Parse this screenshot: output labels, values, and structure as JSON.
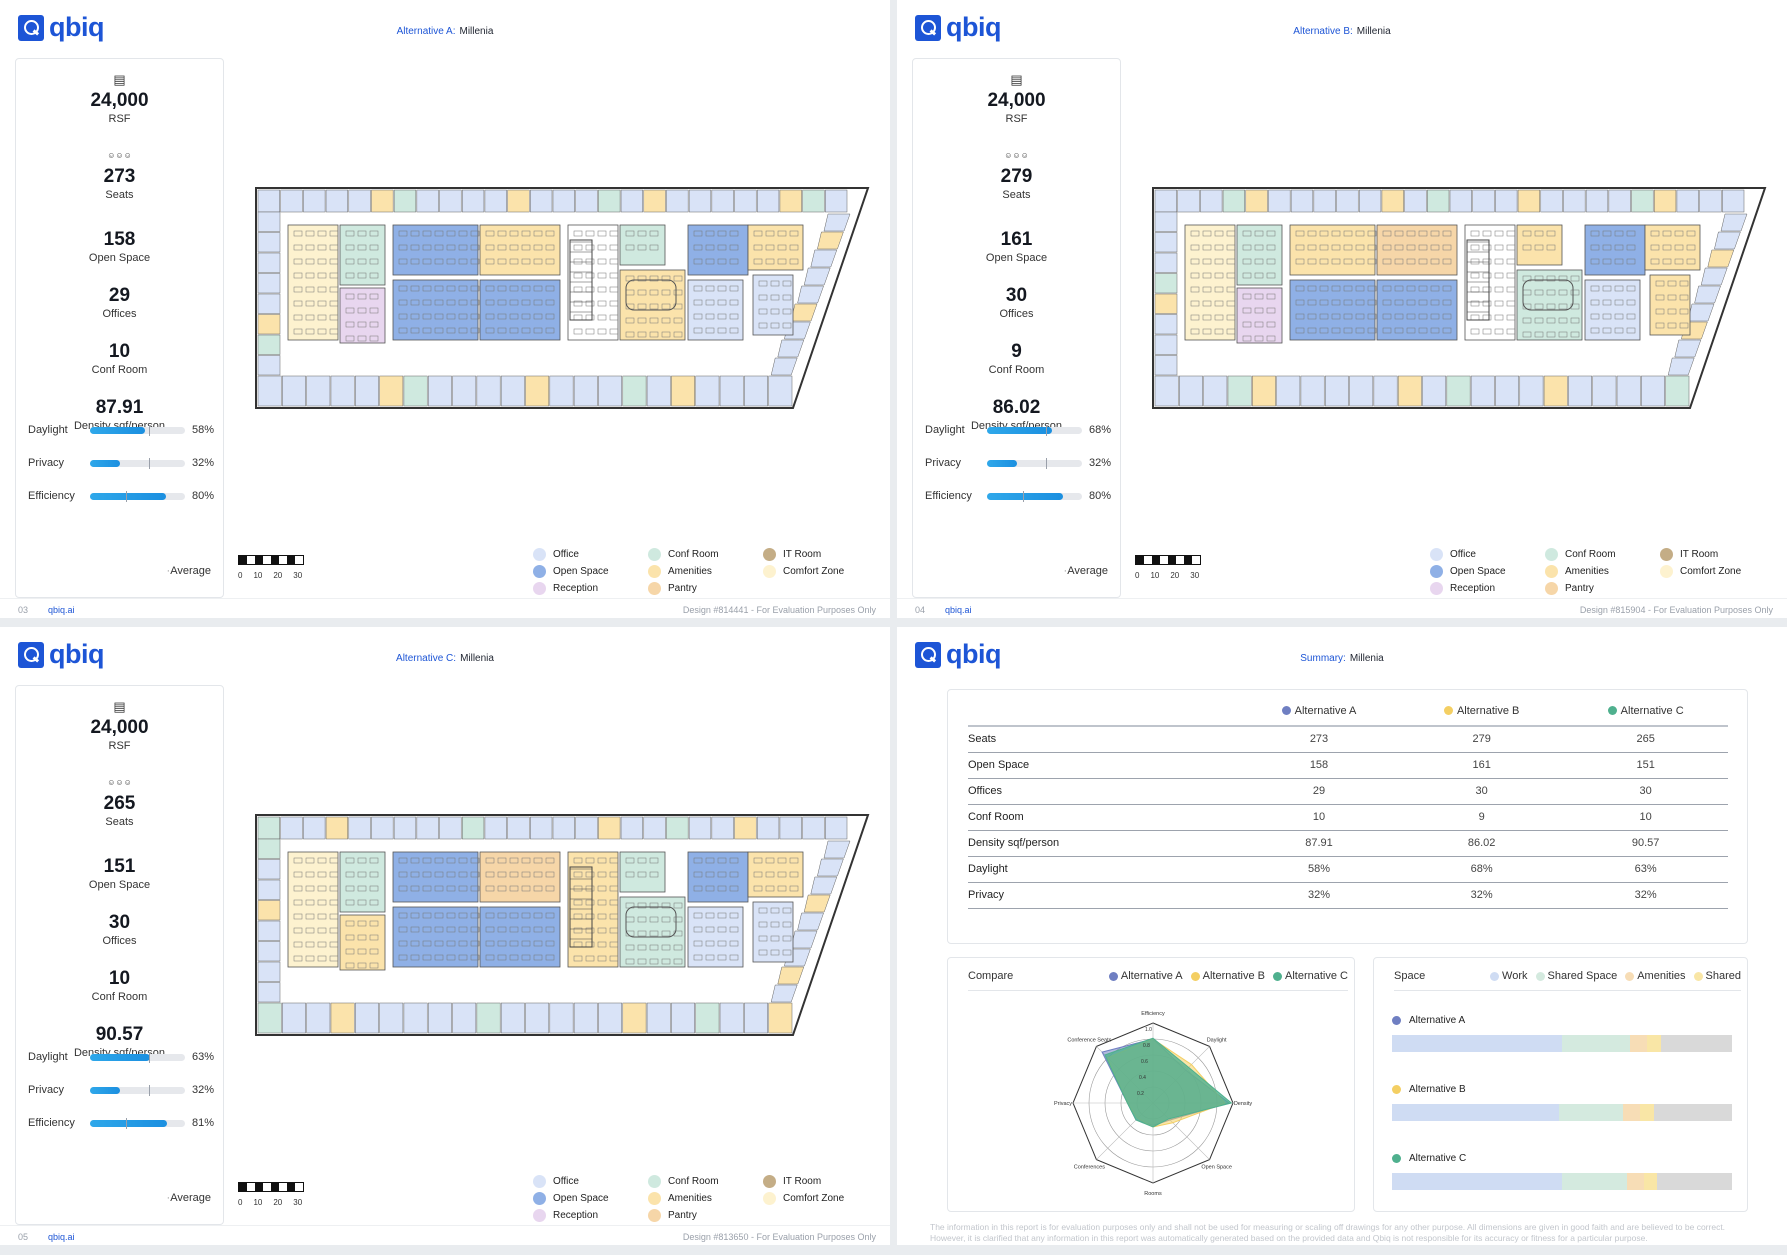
{
  "brand": {
    "logo_text": "qbiq",
    "url": "qbiq.ai"
  },
  "colors": {
    "office": "#d9e3f7",
    "open_space": "#8fb0e6",
    "reception": "#e8d6ef",
    "conf_room": "#cfe9df",
    "amenities": "#fbe3ab",
    "pantry": "#f6d6a8",
    "it_room": "#c4ad86",
    "comfort_zone": "#fdf2cf",
    "alt_a": "#6f7fc2",
    "alt_b": "#f4cf63",
    "alt_c": "#4fb08e"
  },
  "legend": [
    "Office",
    "Conf Room",
    "IT Room",
    "Open Space",
    "Amenities",
    "Comfort Zone",
    "Reception",
    "Pantry"
  ],
  "scale": {
    "ticks": [
      "0",
      "10",
      "20",
      "30"
    ]
  },
  "metric_labels": {
    "daylight": "Daylight",
    "privacy": "Privacy",
    "efficiency": "Efficiency",
    "average": "Average"
  },
  "pages": [
    {
      "title_label": "Alternative A:",
      "title_value": "Millenia",
      "rsf": "24,000",
      "rsf_label": "RSF",
      "seats": "273",
      "seats_label": "Seats",
      "open_space": "158",
      "open_space_label": "Open Space",
      "offices": "29",
      "offices_label": "Offices",
      "conf_room": "10",
      "conf_room_label": "Conf Room",
      "density": "87.91",
      "density_label": "Density sqf/person",
      "daylight": "58%",
      "privacy": "32%",
      "efficiency": "80%",
      "daylight_frac": 0.58,
      "privacy_frac": 0.32,
      "efficiency_frac": 0.8,
      "page_number": "03",
      "design": "Design #814441 - For Evaluation Purposes Only"
    },
    {
      "title_label": "Alternative B:",
      "title_value": "Millenia",
      "rsf": "24,000",
      "rsf_label": "RSF",
      "seats": "279",
      "seats_label": "Seats",
      "open_space": "161",
      "open_space_label": "Open Space",
      "offices": "30",
      "offices_label": "Offices",
      "conf_room": "9",
      "conf_room_label": "Conf Room",
      "density": "86.02",
      "density_label": "Density sqf/person",
      "daylight": "68%",
      "privacy": "32%",
      "efficiency": "80%",
      "daylight_frac": 0.68,
      "privacy_frac": 0.32,
      "efficiency_frac": 0.8,
      "page_number": "04",
      "design": "Design #815904 - For Evaluation Purposes Only"
    },
    {
      "title_label": "Alternative C:",
      "title_value": "Millenia",
      "rsf": "24,000",
      "rsf_label": "RSF",
      "seats": "265",
      "seats_label": "Seats",
      "open_space": "151",
      "open_space_label": "Open Space",
      "offices": "30",
      "offices_label": "Offices",
      "conf_room": "10",
      "conf_room_label": "Conf Room",
      "density": "90.57",
      "density_label": "Density sqf/person",
      "daylight": "63%",
      "privacy": "32%",
      "efficiency": "81%",
      "daylight_frac": 0.63,
      "privacy_frac": 0.32,
      "efficiency_frac": 0.81,
      "page_number": "05",
      "design": "Design #813650 - For Evaluation Purposes Only"
    }
  ],
  "summary": {
    "title_label": "Summary:",
    "title_value": "Millenia",
    "columns": [
      "Alternative A",
      "Alternative B",
      "Alternative C"
    ],
    "rows": [
      {
        "label": "Seats",
        "values": [
          "273",
          "279",
          "265"
        ]
      },
      {
        "label": "Open Space",
        "values": [
          "158",
          "161",
          "151"
        ]
      },
      {
        "label": "Offices",
        "values": [
          "29",
          "30",
          "30"
        ]
      },
      {
        "label": "Conf Room",
        "values": [
          "10",
          "9",
          "10"
        ]
      },
      {
        "label": "Density sqf/person",
        "values": [
          "87.91",
          "86.02",
          "90.57"
        ]
      },
      {
        "label": "Daylight",
        "values": [
          "58%",
          "68%",
          "63%"
        ]
      },
      {
        "label": "Privacy",
        "values": [
          "32%",
          "32%",
          "32%"
        ]
      }
    ],
    "compare_title": "Compare",
    "space_title": "Space",
    "space_legend": [
      "Work",
      "Shared Space",
      "Amenities",
      "Shared"
    ],
    "disclaimer": "The information in this report is for evaluation purposes only and shall not be used for measuring or scaling off drawings for any other purpose. All dimensions are given in good faith and are believed to be correct. However, it is clarified that any information in this report was automatically generated based on the provided data and Qbiq is not responsible for its accuracy or fitness for a particular purpose."
  },
  "chart_data": [
    {
      "type": "radar",
      "axes": [
        "Efficiency",
        "Daylight",
        "Density",
        "Open Space",
        "Rooms",
        "Conferences",
        "Privacy",
        "Conference Seats"
      ],
      "tick_labels": [
        "0.2",
        "0.4",
        "0.6",
        "0.8",
        "1.0"
      ],
      "range": [
        0,
        1
      ],
      "series": [
        {
          "name": "Alternative A",
          "values": [
            0.8,
            0.58,
            0.95,
            0.3,
            0.28,
            0.3,
            0.32,
            0.9
          ]
        },
        {
          "name": "Alternative B",
          "values": [
            0.8,
            0.68,
            0.9,
            0.35,
            0.3,
            0.27,
            0.32,
            0.8
          ]
        },
        {
          "name": "Alternative C",
          "values": [
            0.81,
            0.63,
            0.98,
            0.28,
            0.3,
            0.3,
            0.32,
            0.85
          ]
        }
      ]
    },
    {
      "type": "bar",
      "stacked": true,
      "categories": [
        "Alternative A",
        "Alternative B",
        "Alternative C"
      ],
      "series": [
        {
          "name": "Work",
          "values": [
            0.5,
            0.49,
            0.5
          ]
        },
        {
          "name": "Shared Space",
          "values": [
            0.2,
            0.19,
            0.19
          ]
        },
        {
          "name": "Amenities",
          "values": [
            0.05,
            0.05,
            0.05
          ]
        },
        {
          "name": "Shared",
          "values": [
            0.04,
            0.04,
            0.04
          ]
        },
        {
          "name": "",
          "values": [
            0.21,
            0.23,
            0.22
          ]
        }
      ]
    }
  ]
}
